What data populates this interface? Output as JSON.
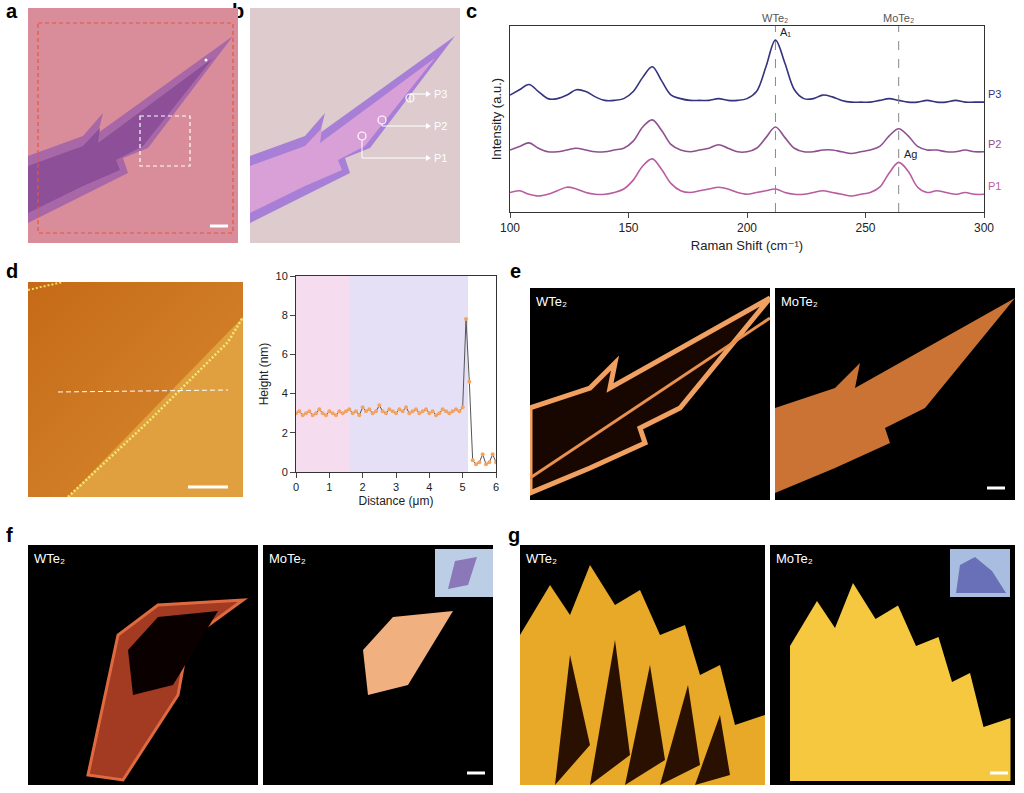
{
  "panel_letters": [
    "a",
    "b",
    "c",
    "d",
    "e",
    "f",
    "g"
  ],
  "images": {
    "b": {
      "labels": [
        "P1",
        "P2",
        "P3"
      ]
    },
    "e": {
      "labels": [
        "WTe₂",
        "MoTe₂"
      ]
    },
    "f": {
      "labels": [
        "WTe₂",
        "MoTe₂"
      ]
    },
    "g": {
      "labels": [
        "WTe₂",
        "MoTe₂"
      ]
    }
  },
  "chart_data": [
    {
      "type": "line",
      "line_style": "solid",
      "x_label": "Raman Shift (cm⁻¹)",
      "y_label": "Intensity (a.u.)",
      "x": [
        100,
        104,
        108,
        112,
        116,
        120,
        124,
        128,
        132,
        136,
        140,
        144,
        148,
        152,
        156,
        160,
        164,
        168,
        172,
        176,
        180,
        184,
        188,
        192,
        196,
        200,
        204,
        208,
        212,
        216,
        220,
        224,
        228,
        232,
        236,
        240,
        244,
        248,
        252,
        256,
        260,
        264,
        268,
        272,
        276,
        280,
        284,
        288,
        292,
        296,
        300
      ],
      "series": [
        {
          "name": "P3",
          "color": "#34337e",
          "values": [
            6.6,
            6.9,
            7.2,
            6.8,
            6.4,
            6.4,
            6.6,
            6.9,
            6.8,
            6.5,
            6.3,
            6.3,
            6.4,
            6.8,
            7.6,
            8.2,
            7.4,
            6.6,
            6.4,
            6.3,
            6.3,
            6.3,
            6.4,
            6.3,
            6.3,
            6.4,
            6.8,
            8.2,
            9.7,
            8.4,
            6.9,
            6.4,
            6.4,
            6.6,
            6.5,
            6.3,
            6.2,
            6.2,
            6.2,
            6.3,
            6.4,
            6.3,
            6.2,
            6.2,
            6.3,
            6.2,
            6.2,
            6.3,
            6.2,
            6.2,
            6.2
          ]
        },
        {
          "name": "P2",
          "color": "#8e4f90",
          "values": [
            3.5,
            3.7,
            3.9,
            3.6,
            3.4,
            3.4,
            3.5,
            3.6,
            3.5,
            3.4,
            3.4,
            3.5,
            3.6,
            4.0,
            4.8,
            5.2,
            4.6,
            3.8,
            3.5,
            3.4,
            3.5,
            3.6,
            3.8,
            3.6,
            3.4,
            3.4,
            3.6,
            4.2,
            4.8,
            4.2,
            3.6,
            3.4,
            3.4,
            3.5,
            3.5,
            3.4,
            3.3,
            3.4,
            3.5,
            3.7,
            4.3,
            4.7,
            4.3,
            3.7,
            3.5,
            3.5,
            3.4,
            3.4,
            3.5,
            3.4,
            3.4
          ]
        },
        {
          "name": "P1",
          "color": "#b95ca0",
          "values": [
            1.1,
            1.2,
            1.0,
            0.9,
            1.0,
            1.2,
            1.4,
            1.3,
            1.1,
            1.0,
            1.0,
            1.1,
            1.3,
            1.8,
            2.6,
            3.0,
            2.4,
            1.6,
            1.2,
            1.1,
            1.2,
            1.3,
            1.4,
            1.3,
            1.1,
            1.0,
            1.1,
            1.2,
            1.3,
            1.1,
            1.0,
            1.0,
            1.1,
            1.2,
            1.1,
            1.0,
            0.9,
            1.0,
            1.1,
            1.4,
            2.2,
            2.8,
            2.3,
            1.4,
            1.1,
            1.2,
            1.1,
            1.0,
            1.1,
            1.0,
            1.0
          ]
        }
      ],
      "xlim": [
        100,
        300
      ],
      "xticks": [
        100,
        150,
        200,
        250,
        300
      ],
      "ylim": [
        0,
        10.5
      ],
      "yticks": [],
      "tick_labels": "x",
      "reference_lines": [
        {
          "x": 212,
          "label": "WTe₂"
        },
        {
          "x": 264,
          "label": "MoTe₂"
        }
      ],
      "annotations": [
        {
          "x": 212,
          "y": 9.7,
          "text": "A₁"
        },
        {
          "x": 264,
          "y": 2.8,
          "text": "Ag"
        }
      ]
    },
    {
      "type": "line",
      "marker": "circle",
      "color": "#f4a460",
      "x_label": "Distance (μm)",
      "y_label": "Height (nm)",
      "x": [
        0,
        0.1,
        0.2,
        0.3,
        0.4,
        0.5,
        0.6,
        0.7,
        0.8,
        0.9,
        1.0,
        1.1,
        1.2,
        1.3,
        1.4,
        1.5,
        1.6,
        1.7,
        1.8,
        1.9,
        2.0,
        2.1,
        2.2,
        2.3,
        2.4,
        2.5,
        2.6,
        2.7,
        2.8,
        2.9,
        3.0,
        3.1,
        3.2,
        3.3,
        3.4,
        3.5,
        3.6,
        3.7,
        3.8,
        3.9,
        4.0,
        4.1,
        4.2,
        4.3,
        4.4,
        4.5,
        4.6,
        4.7,
        4.8,
        4.9,
        5.0,
        5.1,
        5.2,
        5.3,
        5.4,
        5.5,
        5.6,
        5.7,
        5.8,
        5.9,
        6.0
      ],
      "values": [
        3.0,
        3.1,
        2.9,
        3.0,
        3.1,
        2.9,
        3.0,
        3.2,
        3.0,
        2.9,
        3.1,
        3.0,
        2.9,
        3.1,
        3.0,
        3.1,
        3.2,
        3.0,
        3.1,
        2.9,
        3.3,
        3.1,
        3.2,
        3.0,
        3.1,
        3.4,
        3.1,
        3.0,
        3.2,
        3.1,
        3.0,
        3.2,
        3.1,
        3.3,
        3.0,
        3.1,
        3.2,
        3.0,
        3.1,
        3.2,
        3.0,
        3.1,
        2.9,
        3.0,
        3.2,
        3.1,
        3.0,
        3.1,
        3.2,
        3.1,
        3.3,
        7.8,
        4.6,
        0.6,
        0.4,
        0.5,
        0.9,
        0.4,
        0.5,
        0.9,
        0.5
      ],
      "xlim": [
        0,
        6
      ],
      "xticks": [
        0,
        1,
        2,
        3,
        4,
        5,
        6
      ],
      "ylim": [
        0,
        10
      ],
      "yticks": [
        0,
        2,
        4,
        6,
        8,
        10
      ]
    }
  ]
}
